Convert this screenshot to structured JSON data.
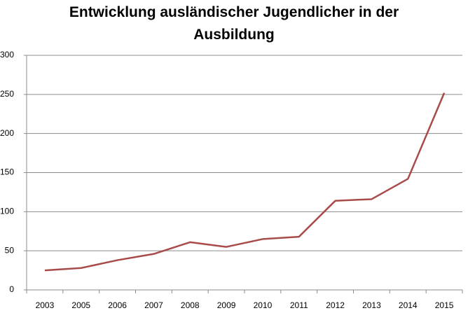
{
  "chart_data": {
    "type": "line",
    "title": "Entwicklung ausländischer Jugendlicher in der Ausbildung",
    "categories": [
      "2003",
      "2005",
      "2006",
      "2007",
      "2008",
      "2009",
      "2010",
      "2011",
      "2012",
      "2013",
      "2014",
      "2015"
    ],
    "series": [
      {
        "name": null,
        "color": "#a84b4b",
        "values": [
          25,
          28,
          38,
          46,
          61,
          55,
          65,
          68,
          114,
          116,
          142,
          252
        ]
      }
    ],
    "ylim": [
      0,
      300
    ],
    "yticks": [
      0,
      50,
      100,
      150,
      200,
      250,
      300
    ],
    "grid": true
  }
}
